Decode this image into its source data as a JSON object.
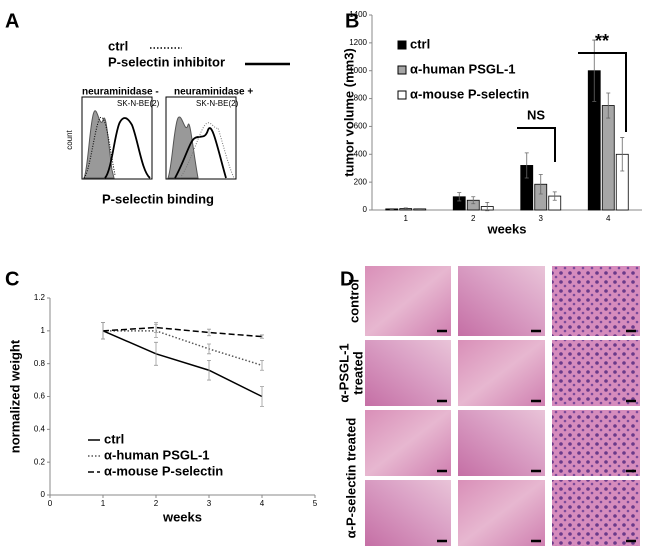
{
  "panels": [
    "A",
    "B",
    "C",
    "D"
  ],
  "panel_a": {
    "legend": [
      "ctrl",
      "P-selectin inhibitor"
    ],
    "y_label": "count",
    "x_label": "P-selectin binding",
    "plots": [
      {
        "title": "neuraminidase -",
        "cell_line": "SK-N-BE(2)"
      },
      {
        "title": "neuraminidase +",
        "cell_line": "SK-N-BE(2)"
      }
    ]
  },
  "panel_d": {
    "row_labels": [
      [
        "control"
      ],
      [
        "α-PSGL-1",
        "treated"
      ],
      [
        "α-P-selectin treated"
      ],
      []
    ]
  },
  "chart_data": [
    {
      "type": "bar",
      "y_label": "tumor volume (mm3)",
      "x_label": "weeks",
      "categories": [
        "1",
        "2",
        "3",
        "4"
      ],
      "series": [
        {
          "name": "ctrl",
          "color": "#000000",
          "values": [
            8,
            95,
            320,
            1000
          ],
          "errors": [
            3,
            30,
            90,
            220
          ]
        },
        {
          "name": "α-human PSGL-1",
          "color": "#a6a6a6",
          "values": [
            10,
            70,
            185,
            750
          ],
          "errors": [
            5,
            25,
            70,
            90
          ]
        },
        {
          "name": "α-mouse P-selectin",
          "color": "#ffffff",
          "values": [
            8,
            25,
            100,
            400
          ],
          "errors": [
            3,
            30,
            30,
            120
          ]
        }
      ],
      "ylim": [
        0,
        1400
      ],
      "yticks": [
        0,
        200,
        400,
        600,
        800,
        1000,
        1200,
        1400
      ],
      "annotations": [
        "NS",
        "**"
      ]
    },
    {
      "type": "line",
      "y_label": "normalized weight",
      "x_label": "weeks",
      "x": [
        1,
        2,
        3,
        4
      ],
      "series": [
        {
          "name": "ctrl",
          "color": "#000000",
          "style": "solid",
          "values": [
            1,
            0.86,
            0.76,
            0.6
          ],
          "errors": [
            0.05,
            0.07,
            0.06,
            0.06
          ]
        },
        {
          "name": "α-human PSGL-1",
          "color": "#555555",
          "style": "dotted",
          "values": [
            1,
            1.0,
            0.89,
            0.79
          ],
          "errors": [
            0.05,
            0.04,
            0.03,
            0.03
          ]
        },
        {
          "name": "α-mouse P-selectin",
          "color": "#000000",
          "style": "dashed",
          "values": [
            1,
            1.02,
            0.99,
            0.965
          ],
          "errors": [
            0.05,
            0.03,
            0.02,
            0.01
          ]
        }
      ],
      "xlim": [
        0,
        5
      ],
      "xticks": [
        0,
        1,
        2,
        3,
        4,
        5
      ],
      "ylim": [
        0,
        1.2
      ],
      "yticks": [
        0,
        0.2,
        0.4,
        0.6,
        0.8,
        1,
        1.2
      ]
    }
  ]
}
